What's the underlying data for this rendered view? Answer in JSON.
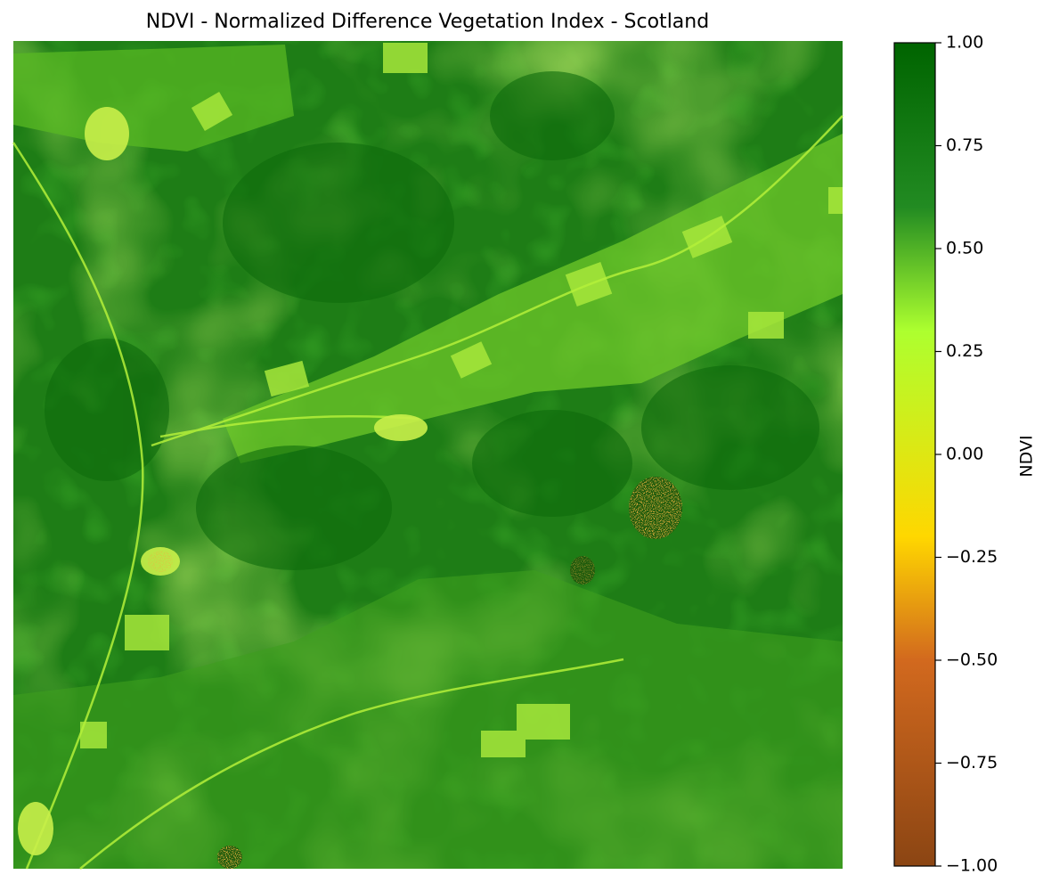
{
  "chart_data": {
    "type": "heatmap",
    "title": "NDVI - Normalized Difference Vegetation Index - Scotland",
    "colorbar": {
      "label": "NDVI",
      "range": [
        -1.0,
        1.0
      ],
      "ticks": [
        1.0,
        0.75,
        0.5,
        0.25,
        0.0,
        -0.25,
        -0.5,
        -0.75,
        -1.0
      ],
      "tick_labels": [
        "1.00",
        "0.75",
        "0.50",
        "0.25",
        "0.00",
        "−0.25",
        "−0.50",
        "−0.75",
        "−1.00"
      ],
      "colormap": [
        {
          "value": -1.0,
          "color": "#8b4513"
        },
        {
          "value": -0.5,
          "color": "#d2691e"
        },
        {
          "value": -0.2,
          "color": "#ffd700"
        },
        {
          "value": 0.3,
          "color": "#adff2f"
        },
        {
          "value": 0.6,
          "color": "#228b22"
        },
        {
          "value": 1.0,
          "color": "#006400"
        }
      ]
    },
    "axes_visible": false,
    "grid": false
  }
}
